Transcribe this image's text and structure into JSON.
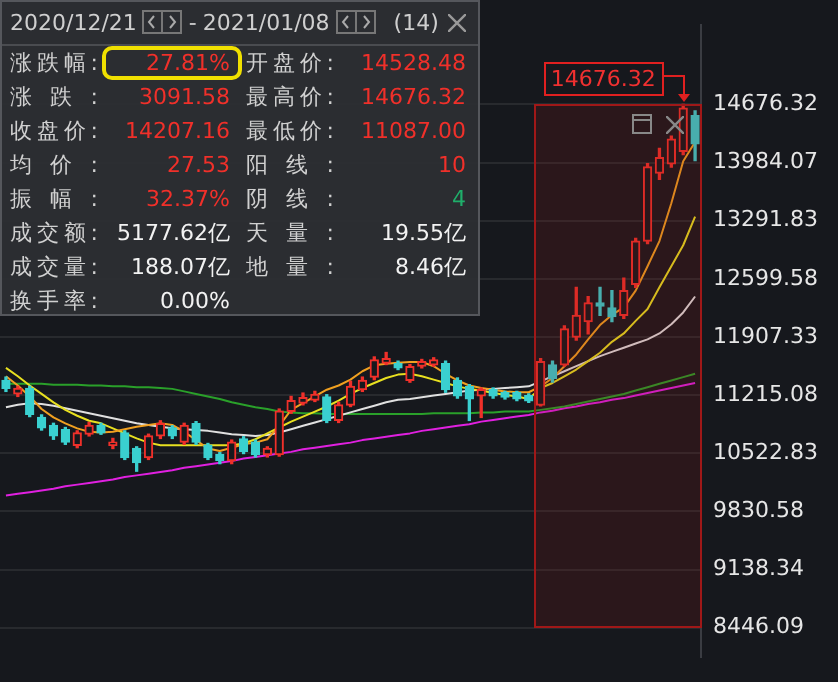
{
  "chart_data": {
    "type": "candlestick",
    "categories": [
      null,
      null,
      null,
      null,
      null,
      null,
      null,
      null,
      null,
      null,
      null,
      null,
      null,
      null,
      null,
      null,
      null,
      null,
      null,
      null,
      null,
      null,
      null,
      null,
      null,
      null,
      null,
      null,
      null,
      null,
      null,
      null,
      null,
      null,
      null,
      null,
      null,
      null,
      null,
      null,
      null,
      null,
      null,
      null,
      null,
      null,
      null,
      null,
      null,
      null,
      null,
      null,
      null,
      null,
      null,
      null,
      null,
      null,
      null
    ],
    "ohlc": [
      [
        11392,
        11430,
        11260,
        11297
      ],
      [
        11230,
        11320,
        11200,
        11297
      ],
      [
        11297,
        11320,
        10960,
        10987
      ],
      [
        10951,
        10980,
        10800,
        10825
      ],
      [
        10855,
        10880,
        10690,
        10730
      ],
      [
        10803,
        10830,
        10630,
        10656
      ],
      [
        10619,
        10790,
        10590,
        10766
      ],
      [
        10752,
        10890,
        10730,
        10855
      ],
      [
        10855,
        10880,
        10750,
        10766
      ],
      [
        10619,
        10700,
        10580,
        10656
      ],
      [
        10766,
        10790,
        10450,
        10472
      ],
      [
        10582,
        10600,
        10310,
        10413
      ],
      [
        10472,
        10750,
        10450,
        10730
      ],
      [
        10730,
        10910,
        10700,
        10877
      ],
      [
        10825,
        10850,
        10700,
        10730
      ],
      [
        10656,
        10880,
        10630,
        10855
      ],
      [
        10877,
        10900,
        10630,
        10656
      ],
      [
        10619,
        10640,
        10450,
        10472
      ],
      [
        10509,
        10530,
        10400,
        10435
      ],
      [
        10435,
        10680,
        10400,
        10656
      ],
      [
        10693,
        10720,
        10520,
        10546
      ],
      [
        10656,
        10680,
        10480,
        10509
      ],
      [
        10509,
        10600,
        10480,
        10582
      ],
      [
        10509,
        11050,
        10490,
        11024
      ],
      [
        11024,
        11200,
        11000,
        11149
      ],
      [
        11120,
        11240,
        11100,
        11186
      ],
      [
        11157,
        11260,
        11140,
        11223
      ],
      [
        11193,
        11220,
        10890,
        10914
      ],
      [
        10914,
        11130,
        10890,
        11098
      ],
      [
        11098,
        11380,
        11080,
        11319
      ],
      [
        11282,
        11430,
        11260,
        11392
      ],
      [
        11429,
        11670,
        11400,
        11635
      ],
      [
        11598,
        11723,
        11580,
        11650
      ],
      [
        11591,
        11620,
        11520,
        11540
      ],
      [
        11392,
        11580,
        11370,
        11554
      ],
      [
        11562,
        11640,
        11540,
        11613
      ],
      [
        11576,
        11660,
        11560,
        11635
      ],
      [
        11591,
        11620,
        11250,
        11282
      ],
      [
        11392,
        11420,
        11180,
        11208
      ],
      [
        11319,
        11340,
        10914,
        11171
      ],
      [
        11208,
        11300,
        10950,
        11282
      ],
      [
        11282,
        11300,
        11180,
        11208
      ],
      [
        11245,
        11260,
        11170,
        11193
      ],
      [
        11245,
        11260,
        11150,
        11171
      ],
      [
        11208,
        11230,
        11130,
        11149
      ],
      [
        11098,
        11650,
        11087,
        11613
      ],
      [
        11576,
        11620,
        11370,
        11414
      ],
      [
        11576,
        12040,
        11560,
        12004
      ],
      [
        11908,
        12497,
        11870,
        12166
      ],
      [
        12092,
        12387,
        11945,
        12313
      ],
      [
        12313,
        12497,
        12166,
        12276
      ],
      [
        12254,
        12460,
        12092,
        12151
      ],
      [
        12166,
        12607,
        12130,
        12460
      ],
      [
        12534,
        13080,
        12500,
        13049
      ],
      [
        13049,
        13970,
        13020,
        13933
      ],
      [
        13859,
        14154,
        13786,
        14043
      ],
      [
        13970,
        14300,
        13930,
        14264
      ],
      [
        14117,
        14676.32,
        14080,
        14632
      ],
      [
        14544,
        14600,
        14007,
        14207.16
      ]
    ],
    "colors": [
      "#3ad0d0",
      "#f0302a",
      "#3ad0d0",
      "#3ad0d0",
      "#3ad0d0",
      "#3ad0d0",
      "#f0302a",
      "#f0302a",
      "#3ad0d0",
      "#f0302a",
      "#3ad0d0",
      "#3ad0d0",
      "#f0302a",
      "#f0302a",
      "#3ad0d0",
      "#f0302a",
      "#3ad0d0",
      "#3ad0d0",
      "#3ad0d0",
      "#f0302a",
      "#3ad0d0",
      "#3ad0d0",
      "#f0302a",
      "#f0302a",
      "#f0302a",
      "#f0302a",
      "#f0302a",
      "#3ad0d0",
      "#f0302a",
      "#f0302a",
      "#f0302a",
      "#f0302a",
      "#f0302a",
      "#3ad0d0",
      "#f0302a",
      "#f0302a",
      "#f0302a",
      "#3ad0d0",
      "#3ad0d0",
      "#3ad0d0",
      "#f0302a",
      "#3ad0d0",
      "#3ad0d0",
      "#3ad0d0",
      "#3ad0d0",
      "#f0302a",
      "#3ad0d0",
      "#f0302a",
      "#f0302a",
      "#f0302a",
      "#3ad0d0",
      "#3ad0d0",
      "#f0302a",
      "#f0302a",
      "#f0302a",
      "#f0302a",
      "#f0302a",
      "#f0302a",
      "#3ad0d0"
    ],
    "series": [
      {
        "type": "line",
        "color": "#f0a020",
        "values": [
          11440,
          11330,
          11200,
          11050,
          10950,
          10880,
          10820,
          10780,
          10770,
          10780,
          10810,
          10840,
          10860,
          10880,
          10860,
          10780,
          10680,
          10580,
          10550,
          10590,
          10630,
          10650,
          10690,
          10850,
          11040,
          11120,
          11200,
          11280,
          11330,
          11400,
          11500,
          11570,
          11590,
          11600,
          11610,
          11610,
          11560,
          11470,
          11390,
          11330,
          11300,
          11280,
          11260,
          11250,
          11250,
          11320,
          11420,
          11560,
          11700,
          11880,
          12050,
          12170,
          12260,
          12460,
          12750,
          13050,
          13500,
          14000,
          14230
        ]
      },
      {
        "type": "line",
        "color": "#e8e020",
        "values": [
          11540,
          11440,
          11330,
          11230,
          11130,
          11040,
          10970,
          10910,
          10880,
          10820,
          10760,
          10700,
          10650,
          10620,
          10620,
          10620,
          10620,
          10620,
          10620,
          10620,
          10640,
          10690,
          10760,
          10830,
          10900,
          10960,
          11020,
          11080,
          11150,
          11230,
          11300,
          11360,
          11420,
          11460,
          11470,
          11440,
          11400,
          11360,
          11320,
          11290,
          11270,
          11240,
          11220,
          11200,
          11170,
          11300,
          11360,
          11440,
          11520,
          11620,
          11720,
          11850,
          11950,
          12100,
          12240,
          12500,
          12750,
          13000,
          13340
        ]
      },
      {
        "type": "line",
        "color": "#e0e0e0",
        "values": [
          11070,
          11100,
          11120,
          11110,
          11090,
          11060,
          11030,
          11000,
          10970,
          10940,
          10910,
          10880,
          10860,
          10840,
          10820,
          10810,
          10800,
          10790,
          10770,
          10750,
          10740,
          10730,
          10740,
          10770,
          10810,
          10850,
          10890,
          10930,
          10970,
          11010,
          11050,
          11090,
          11130,
          11160,
          11170,
          11190,
          11210,
          11230,
          11250,
          11270,
          11280,
          11290,
          11300,
          11310,
          11320,
          11380,
          11440,
          11500,
          11560,
          11620,
          11680,
          11730,
          11780,
          11830,
          11880,
          11950,
          12060,
          12200,
          12390
        ]
      },
      {
        "type": "line",
        "color": "#2aa02a",
        "values": [
          11350,
          11350,
          11350,
          11350,
          11340,
          11340,
          11340,
          11330,
          11330,
          11320,
          11320,
          11310,
          11310,
          11300,
          11290,
          11260,
          11230,
          11200,
          11170,
          11130,
          11100,
          11070,
          11050,
          11020,
          11010,
          11000,
          11000,
          10990,
          10990,
          10990,
          10990,
          10990,
          10990,
          10990,
          10990,
          10990,
          11000,
          11000,
          11000,
          11000,
          11010,
          11010,
          11020,
          11020,
          11020,
          11040,
          11060,
          11080,
          11110,
          11140,
          11170,
          11200,
          11230,
          11270,
          11310,
          11350,
          11390,
          11430,
          11470
        ]
      },
      {
        "type": "line",
        "color": "#e020e0",
        "values": [
          10020,
          10040,
          10060,
          10080,
          10100,
          10130,
          10150,
          10170,
          10190,
          10210,
          10240,
          10260,
          10280,
          10300,
          10320,
          10350,
          10370,
          10390,
          10410,
          10430,
          10460,
          10480,
          10500,
          10520,
          10540,
          10570,
          10590,
          10610,
          10630,
          10650,
          10680,
          10700,
          10720,
          10740,
          10760,
          10790,
          10810,
          10830,
          10850,
          10870,
          10900,
          10920,
          10940,
          10960,
          10980,
          11010,
          11030,
          11060,
          11080,
          11110,
          11130,
          11160,
          11180,
          11210,
          11240,
          11270,
          11300,
          11330,
          11360
        ]
      }
    ],
    "ylim": [
      8100,
      15620
    ],
    "yticks": [
      8446.09,
      9138.34,
      9830.58,
      10522.83,
      11215.08,
      11907.33,
      12599.58,
      13291.83,
      13984.07,
      14676.32
    ],
    "grid": "y",
    "legend": false,
    "tick_labels": "y",
    "annotations": [
      "2020/12/21",
      "-",
      "2021/01/08",
      "(14)",
      "涨跌幅:",
      "27.81%",
      "开盘价:",
      "14528.48",
      "涨跌:",
      "3091.58",
      "最高价:",
      "14676.32",
      "收盘价:",
      "14207.16",
      "最低价:",
      "11087.00",
      "均价:",
      "27.53",
      "阳线:",
      "10",
      "振幅:",
      "32.37%",
      "阴线:",
      "4",
      "成交额:",
      "5177.62亿",
      "天量:",
      "19.55亿",
      "成交量:",
      "188.07亿",
      "地量:",
      "8.46亿",
      "换手率:",
      "0.00%",
      "14676.32"
    ]
  }
}
